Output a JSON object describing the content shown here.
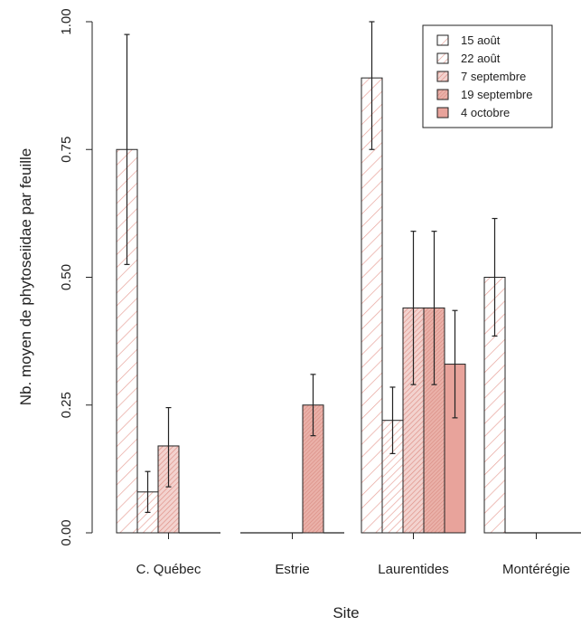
{
  "chart_data": {
    "type": "bar",
    "xlabel": "Site",
    "ylabel": "Nb. moyen de phytoseiidae par feuille",
    "ylim": [
      0,
      1.0
    ],
    "yticks": [
      "0.00",
      "0.25",
      "0.50",
      "0.75",
      "1.00"
    ],
    "categories": [
      "C. Québec",
      "Estrie",
      "Laurentides",
      "Montérégie"
    ],
    "legend_position": "top-right",
    "bar_color": "#e8a39b",
    "series": [
      {
        "name": "15 août",
        "values": [
          0.75,
          0,
          0.89,
          0.5
        ],
        "err_low": [
          0.525,
          null,
          0.75,
          0.385
        ],
        "err_high": [
          0.975,
          null,
          1.0,
          0.615
        ]
      },
      {
        "name": "22 août",
        "values": [
          0.08,
          0,
          0.22,
          0
        ],
        "err_low": [
          0.04,
          null,
          0.155,
          null
        ],
        "err_high": [
          0.12,
          null,
          0.285,
          null
        ]
      },
      {
        "name": "7 septembre",
        "values": [
          0.17,
          0,
          0.44,
          0
        ],
        "err_low": [
          0.09,
          null,
          0.29,
          null
        ],
        "err_high": [
          0.245,
          null,
          0.59,
          null
        ]
      },
      {
        "name": "19 septembre",
        "values": [
          0,
          0.25,
          0.44,
          0
        ],
        "err_low": [
          null,
          0.19,
          0.29,
          null
        ],
        "err_high": [
          null,
          0.31,
          0.59,
          null
        ]
      },
      {
        "name": "4 octobre",
        "values": [
          0,
          0,
          0.33,
          0
        ],
        "err_low": [
          null,
          null,
          0.225,
          null
        ],
        "err_high": [
          null,
          null,
          0.435,
          null
        ]
      }
    ]
  }
}
